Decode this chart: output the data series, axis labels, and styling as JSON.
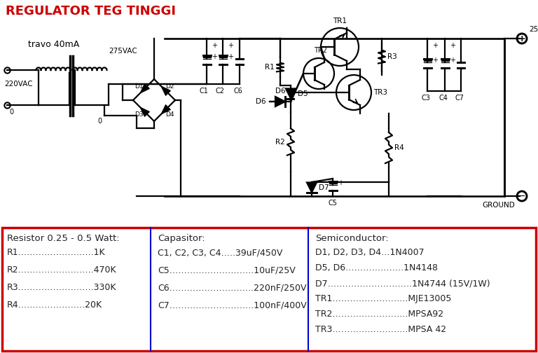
{
  "title": "REGULATOR TEG TINGGI",
  "title_color": "#cc0000",
  "title_fontsize": 13,
  "bg_color": "#ffffff",
  "outer_border_color": "#cc0000",
  "inner_divider_color": "#0000cc",
  "col1_header": "Resistor 0.25 - 0.5 Watt:",
  "col1_rows": [
    "R1……………………..1K",
    "R2……………………..470K",
    "R3……………………..330K",
    "R4…………………..20K"
  ],
  "col2_header": "Capasitor:",
  "col2_rows": [
    "C1, C2, C3, C4…..39uF/450V",
    "C5………………………..10uF/25V",
    "C6………………………..220nF/250V",
    "C7………………………..100nF/400V"
  ],
  "col3_header": "Semiconductor:",
  "col3_rows": [
    "D1, D2, D3, D4…1N4007",
    "D5, D6………………..1N4148",
    "D7………………………..1N4744 (15V/1W)",
    "TR1……………………..MJE13005",
    "TR2……………………..MPSA92",
    "TR3……………………..MPSA 42"
  ],
  "text_color": "#222222",
  "text_fontsize": 9.0,
  "header_fontsize": 9.5
}
